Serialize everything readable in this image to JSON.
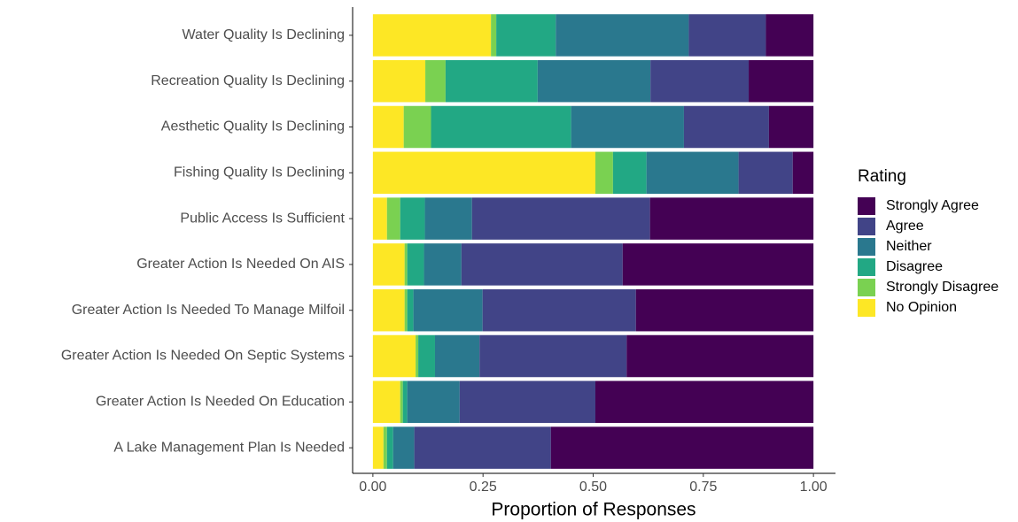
{
  "chart_data": {
    "type": "stacked-bar-horizontal",
    "categories": [
      "Water Quality Is Declining",
      "Recreation Quality Is Declining",
      "Aesthetic Quality Is Declining",
      "Fishing Quality Is Declining",
      "Public Access Is Sufficient",
      "Greater Action Is Needed On AIS",
      "Greater Action Is Needed To Manage Milfoil",
      "Greater Action Is Needed On Septic Systems",
      "Greater Action Is Needed On Education",
      "A Lake Management Plan Is Needed"
    ],
    "series": [
      {
        "name": "Strongly Agree",
        "color": "#440154",
        "values": [
          0.108,
          0.147,
          0.101,
          0.047,
          0.371,
          0.433,
          0.403,
          0.424,
          0.495,
          0.596
        ]
      },
      {
        "name": "Agree",
        "color": "#414487",
        "values": [
          0.175,
          0.223,
          0.193,
          0.123,
          0.404,
          0.366,
          0.348,
          0.334,
          0.308,
          0.31
        ]
      },
      {
        "name": "Neither",
        "color": "#2A788E",
        "values": [
          0.302,
          0.256,
          0.256,
          0.209,
          0.107,
          0.085,
          0.157,
          0.101,
          0.119,
          0.048
        ]
      },
      {
        "name": "Disagree",
        "color": "#22A884",
        "values": [
          0.135,
          0.209,
          0.318,
          0.076,
          0.056,
          0.038,
          0.014,
          0.038,
          0.01,
          0.014
        ]
      },
      {
        "name": "Strongly Disagree",
        "color": "#7AD151",
        "values": [
          0.012,
          0.046,
          0.062,
          0.04,
          0.03,
          0.006,
          0.006,
          0.006,
          0.006,
          0.008
        ]
      },
      {
        "name": "No Opinion",
        "color": "#FDE725",
        "values": [
          0.268,
          0.119,
          0.07,
          0.505,
          0.032,
          0.072,
          0.072,
          0.097,
          0.062,
          0.024
        ]
      }
    ],
    "legend_title": "Rating",
    "xlabel": "Proportion of Responses",
    "xlim": [
      -0.046,
      1.05
    ],
    "xticks": [
      {
        "value": 0,
        "label": "0.00"
      },
      {
        "value": 0.25,
        "label": "0.25"
      },
      {
        "value": 0.5,
        "label": "0.50"
      },
      {
        "value": 0.75,
        "label": "0.75"
      },
      {
        "value": 1,
        "label": "1.00"
      }
    ],
    "legend_position": "right"
  }
}
